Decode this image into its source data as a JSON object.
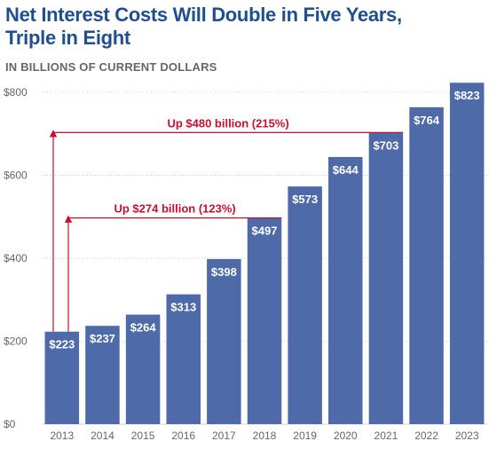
{
  "heading": {
    "title_line1": "Net Interest Costs Will Double in Five Years,",
    "title_line2": "Triple in Eight",
    "subtitle": "IN BILLIONS OF CURRENT DOLLARS"
  },
  "colors": {
    "title": "#1f4f8f",
    "bar": "#4f6aa8",
    "annotation": "#c8102e",
    "grid": "#d6d6d6",
    "axis_text": "#666666"
  },
  "chart_data": {
    "type": "bar",
    "categories": [
      "2013",
      "2014",
      "2015",
      "2016",
      "2017",
      "2018",
      "2019",
      "2020",
      "2021",
      "2022",
      "2023"
    ],
    "values": [
      223,
      237,
      264,
      313,
      398,
      497,
      573,
      644,
      703,
      764,
      823
    ],
    "data_labels": [
      "$223",
      "$237",
      "$264",
      "$313",
      "$398",
      "$497",
      "$573",
      "$644",
      "$703",
      "$764",
      "$823"
    ],
    "ylim": [
      0,
      800
    ],
    "yticks": [
      0,
      200,
      400,
      600,
      800
    ],
    "ytick_labels": [
      "$0",
      "$200",
      "$400",
      "$600",
      "$800"
    ],
    "grid": true,
    "annotations": [
      {
        "text": "Up $274 billion (123%)",
        "from_category": "2013",
        "to_category": "2018",
        "level": 497
      },
      {
        "text": "Up $480 billion (215%)",
        "from_category": "2013",
        "to_category": "2021",
        "level": 703
      }
    ]
  }
}
